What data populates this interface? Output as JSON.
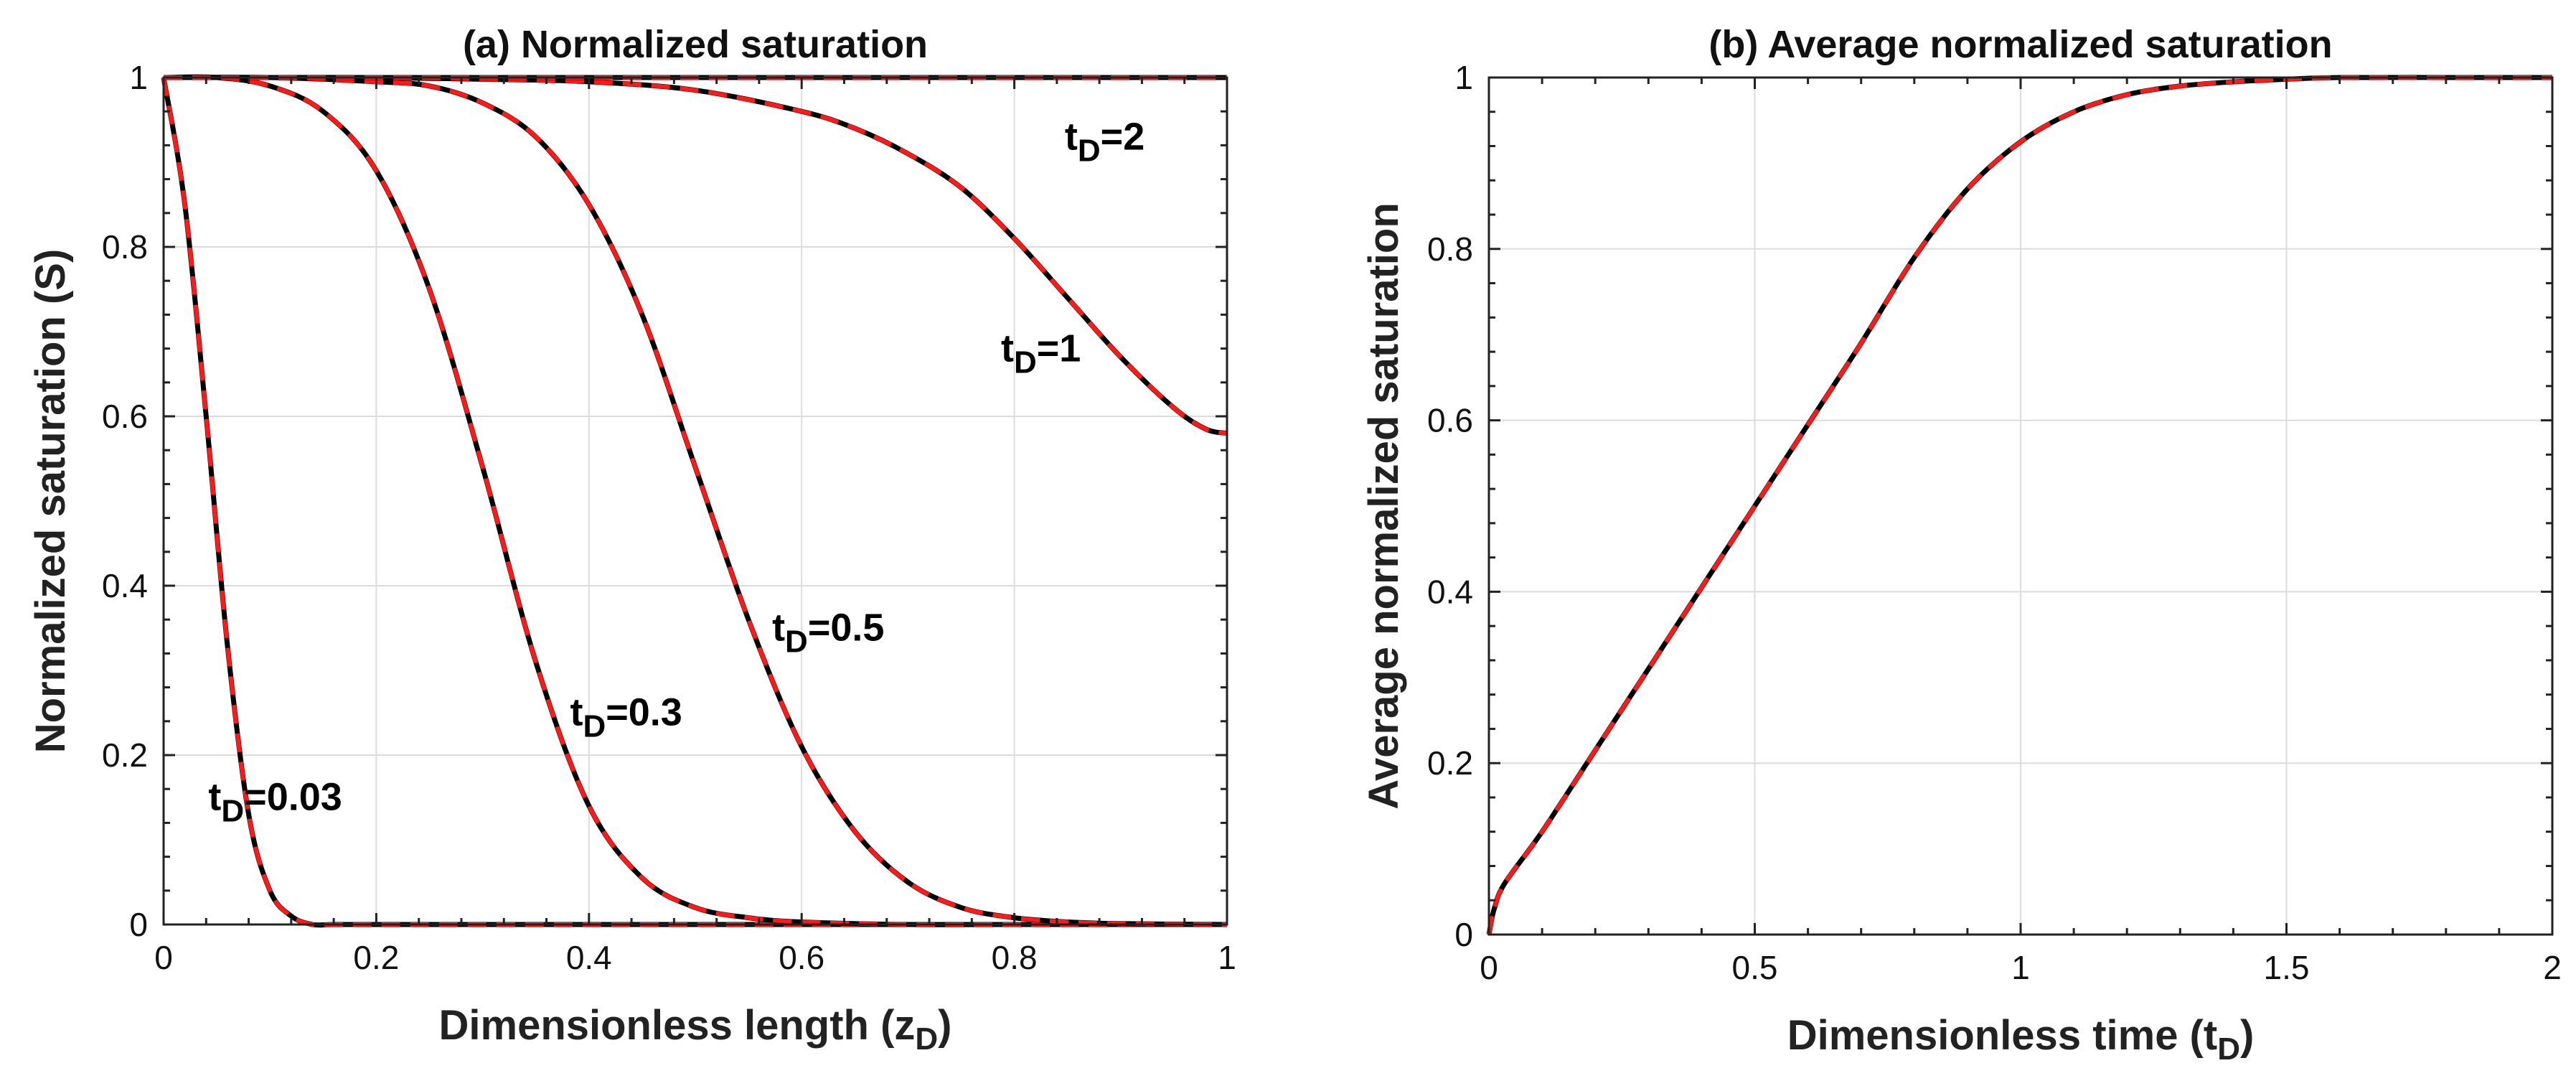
{
  "chart_data": [
    {
      "type": "line",
      "panel": "a",
      "title": "(a) Normalized saturation",
      "xlabel": "Dimensionless length (z",
      "xlabel_sub": "D",
      "xlabel_close": ")",
      "ylabel": "Normalized saturation (S)",
      "xlim": [
        0,
        1
      ],
      "ylim": [
        0,
        1
      ],
      "xticks": [
        0,
        0.2,
        0.4,
        0.6,
        0.8,
        1
      ],
      "xtick_labels": [
        "0",
        "0.2",
        "0.4",
        "0.6",
        "0.8",
        "1"
      ],
      "yticks": [
        0,
        0.2,
        0.4,
        0.6,
        0.8,
        1
      ],
      "ytick_labels": [
        "0",
        "0.2",
        "0.4",
        "0.6",
        "0.8",
        "1"
      ],
      "grid": true,
      "line_styles": [
        {
          "name": "solid",
          "color": "#000000",
          "dash": "none"
        },
        {
          "name": "dashed",
          "color": "#ff0000",
          "dash": "dashed"
        }
      ],
      "series": [
        {
          "name": "tD=0.03",
          "x": [
            0,
            0.02,
            0.04,
            0.06,
            0.08,
            0.1,
            0.12,
            0.14,
            0.16,
            0.2,
            0.4,
            0.6,
            0.8,
            1.0
          ],
          "y": [
            1.0,
            0.85,
            0.6,
            0.33,
            0.13,
            0.04,
            0.01,
            0.0,
            0.0,
            0.0,
            0.0,
            0.0,
            0.0,
            0.0
          ]
        },
        {
          "name": "tD=0.3",
          "x": [
            0,
            0.05,
            0.1,
            0.15,
            0.2,
            0.25,
            0.3,
            0.35,
            0.4,
            0.45,
            0.5,
            0.55,
            0.6,
            0.7,
            0.8,
            1.0
          ],
          "y": [
            1.0,
            1.0,
            0.99,
            0.96,
            0.89,
            0.75,
            0.54,
            0.31,
            0.14,
            0.055,
            0.02,
            0.008,
            0.003,
            0.0,
            0.0,
            0.0
          ]
        },
        {
          "name": "tD=0.5",
          "x": [
            0,
            0.1,
            0.2,
            0.25,
            0.3,
            0.35,
            0.4,
            0.45,
            0.5,
            0.55,
            0.6,
            0.65,
            0.7,
            0.75,
            0.8,
            0.85,
            0.9,
            1.0
          ],
          "y": [
            1.0,
            1.0,
            0.995,
            0.99,
            0.97,
            0.93,
            0.85,
            0.72,
            0.54,
            0.36,
            0.21,
            0.11,
            0.05,
            0.02,
            0.008,
            0.003,
            0.001,
            0.0
          ]
        },
        {
          "name": "tD=1",
          "x": [
            0,
            0.1,
            0.2,
            0.3,
            0.4,
            0.5,
            0.6,
            0.65,
            0.7,
            0.75,
            0.8,
            0.85,
            0.9,
            0.95,
            0.98,
            1.0
          ],
          "y": [
            1.0,
            1.0,
            1.0,
            0.998,
            0.995,
            0.985,
            0.96,
            0.94,
            0.91,
            0.87,
            0.81,
            0.74,
            0.67,
            0.61,
            0.585,
            0.58
          ]
        },
        {
          "name": "tD=2",
          "x": [
            0,
            0.5,
            1.0
          ],
          "y": [
            1.0,
            1.0,
            1.0
          ]
        }
      ],
      "annotations": [
        {
          "base": "t",
          "sub": "D",
          "rest": "=0.03",
          "x": 0.105,
          "y": 0.135
        },
        {
          "base": "t",
          "sub": "D",
          "rest": "=0.3",
          "x": 0.435,
          "y": 0.235
        },
        {
          "base": "t",
          "sub": "D",
          "rest": "=0.5",
          "x": 0.625,
          "y": 0.335
        },
        {
          "base": "t",
          "sub": "D",
          "rest": "=1",
          "x": 0.825,
          "y": 0.665
        },
        {
          "base": "t",
          "sub": "D",
          "rest": "=2",
          "x": 0.885,
          "y": 0.915
        }
      ]
    },
    {
      "type": "line",
      "panel": "b",
      "title": "(b) Average normalized saturation",
      "xlabel": "Dimensionless time (t",
      "xlabel_sub": "D",
      "xlabel_close": ")",
      "ylabel": "Average normalized saturation",
      "xlim": [
        0,
        2
      ],
      "ylim": [
        0,
        1
      ],
      "xticks": [
        0,
        0.5,
        1,
        1.5,
        2
      ],
      "xtick_labels": [
        "0",
        "0.5",
        "1",
        "1.5",
        "2"
      ],
      "yticks": [
        0,
        0.2,
        0.4,
        0.6,
        0.8,
        1
      ],
      "ytick_labels": [
        "0",
        "0.2",
        "0.4",
        "0.6",
        "0.8",
        "1"
      ],
      "grid": true,
      "series": [
        {
          "name": "average",
          "x": [
            0,
            0.01,
            0.03,
            0.1,
            0.2,
            0.3,
            0.4,
            0.5,
            0.6,
            0.7,
            0.8,
            0.9,
            1.0,
            1.1,
            1.2,
            1.3,
            1.4,
            1.5,
            1.6,
            1.8,
            2.0
          ],
          "y": [
            0.0,
            0.03,
            0.06,
            0.12,
            0.215,
            0.31,
            0.405,
            0.5,
            0.595,
            0.69,
            0.79,
            0.87,
            0.925,
            0.96,
            0.98,
            0.99,
            0.995,
            0.998,
            1.0,
            1.0,
            1.0
          ]
        }
      ]
    }
  ]
}
